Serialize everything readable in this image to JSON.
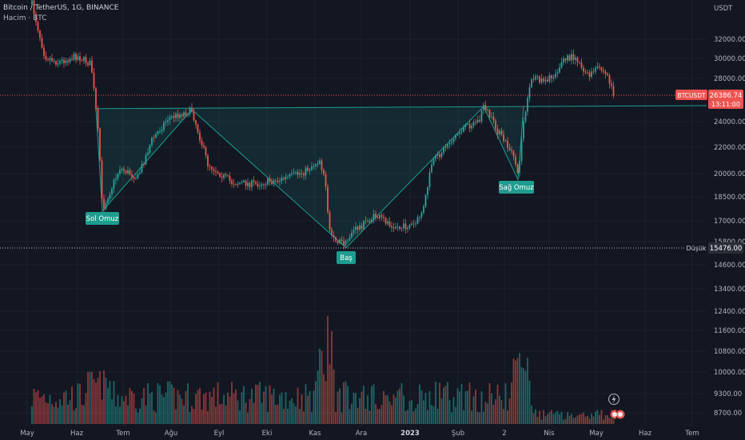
{
  "header": {
    "symbol_line": "Bitcoin / TetherUS, 1G, BINANCE",
    "volume_label": "Hacim · BTC"
  },
  "price_scale": {
    "currency": "USDT",
    "ticks": [
      "32000.00",
      "30000.00",
      "28000.00",
      "24000.00",
      "22000.00",
      "20000.00",
      "18500.00",
      "17000.00",
      "15800.00",
      "14600.00",
      "13400.00",
      "12400.00",
      "11600.00",
      "10800.00",
      "10000.00",
      "9300.00",
      "8700.00"
    ]
  },
  "time_axis": {
    "labels": [
      "May",
      "Haz",
      "Tem",
      "Ağu",
      "Eyl",
      "Eki",
      "Kas",
      "Ara",
      "2023",
      "Şub",
      "2",
      "Nis",
      "May",
      "Haz",
      "Tem"
    ]
  },
  "badges": {
    "last_price_symbol": "BTCUSDT",
    "last_price": "26386.74",
    "countdown": "13:11:00",
    "low_label": "Düşük",
    "low_price": "15476.00"
  },
  "pattern_labels": {
    "left_shoulder": "Sol Omuz",
    "head": "Baş",
    "right_shoulder": "Sağ Omuz"
  },
  "colors": {
    "background": "#131722",
    "up": "#26a69a",
    "down": "#ef5350",
    "pattern": "#1e9c8e",
    "grid": "#1e222d"
  },
  "chart_data": {
    "type": "candlestick",
    "symbol": "BTCUSDT",
    "exchange": "BINANCE",
    "interval": "1D",
    "y_range": [
      8300,
      34500
    ],
    "key_points": {
      "left_shoulder_low": 17600,
      "head_low": 15476,
      "right_shoulder_low": 19600,
      "neckline_left": 25200,
      "neckline_right": 25400,
      "last_price": 26386.74
    },
    "price_path": [
      {
        "month": "May",
        "close": 37000
      },
      {
        "month": "May",
        "close": 30500
      },
      {
        "month": "May",
        "close": 29800
      },
      {
        "month": "Haz",
        "close": 30000
      },
      {
        "month": "Haz",
        "close": 25000
      },
      {
        "month": "Haz",
        "close": 21500
      },
      {
        "month": "Haz",
        "close": 20300
      },
      {
        "month": "Tem",
        "close": 19300
      },
      {
        "month": "Tem",
        "close": 21500
      },
      {
        "month": "Tem",
        "close": 23500
      },
      {
        "month": "Ağu",
        "close": 24000
      },
      {
        "month": "Ağu",
        "close": 24800
      },
      {
        "month": "Ağu",
        "close": 21500
      },
      {
        "month": "Eyl",
        "close": 20000
      },
      {
        "month": "Eyl",
        "close": 19300
      },
      {
        "month": "Eyl",
        "close": 19500
      },
      {
        "month": "Eki",
        "close": 19600
      },
      {
        "month": "Eki",
        "close": 19300
      },
      {
        "month": "Eki",
        "close": 20500
      },
      {
        "month": "Kas",
        "close": 21000
      },
      {
        "month": "Kas",
        "close": 16500
      },
      {
        "month": "Kas",
        "close": 16200
      },
      {
        "month": "Ara",
        "close": 16900
      },
      {
        "month": "Ara",
        "close": 16800
      },
      {
        "month": "2023",
        "close": 16600
      },
      {
        "month": "2023",
        "close": 21000
      },
      {
        "month": "2023",
        "close": 23000
      },
      {
        "month": "Şub",
        "close": 23500
      },
      {
        "month": "Şub",
        "close": 24500
      },
      {
        "month": "2",
        "close": 21000
      },
      {
        "month": "2",
        "close": 20100
      },
      {
        "month": "2",
        "close": 25500
      },
      {
        "month": "Nis",
        "close": 28000
      },
      {
        "month": "Nis",
        "close": 28500
      },
      {
        "month": "Nis",
        "close": 30200
      },
      {
        "month": "May",
        "close": 28900
      },
      {
        "month": "May",
        "close": 29300
      },
      {
        "month": "May",
        "close": 26387
      }
    ]
  }
}
